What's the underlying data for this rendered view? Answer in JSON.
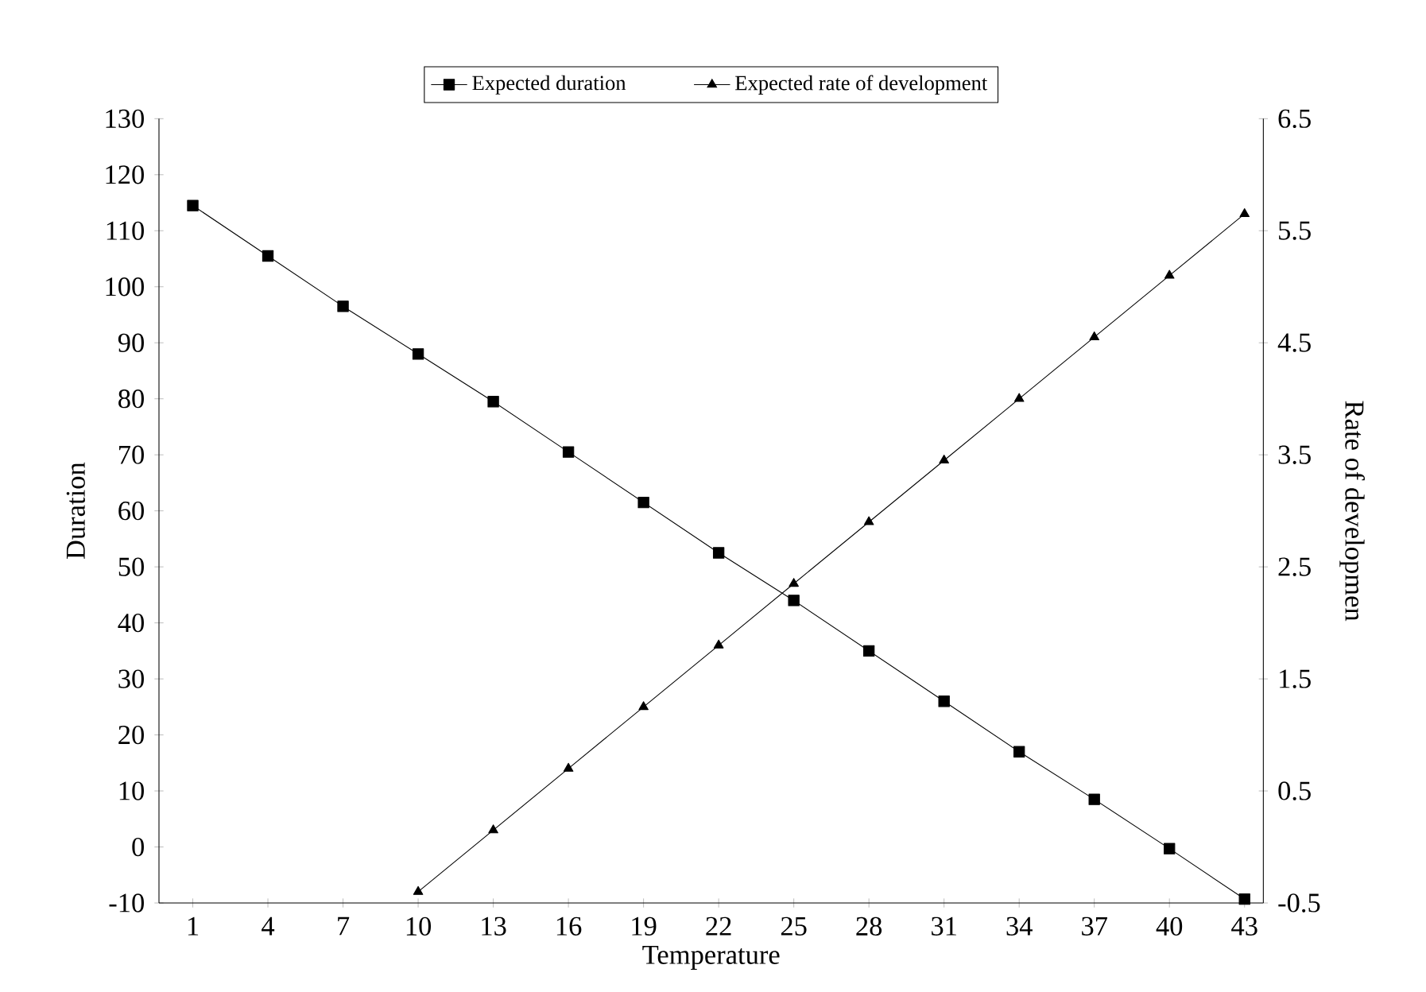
{
  "chart_data": {
    "type": "line",
    "xlabel": "Temperature",
    "ylabel": "Duration",
    "y2label": "Rate of developmen",
    "categories": [
      "1",
      "4",
      "7",
      "10",
      "13",
      "16",
      "19",
      "22",
      "25",
      "28",
      "31",
      "34",
      "37",
      "40",
      "43"
    ],
    "series": [
      {
        "name": "Expected duration",
        "color": "#000000",
        "marker": "square",
        "values": [
          114.5,
          105.5,
          96.5,
          88,
          79.5,
          70.5,
          61.5,
          52.5,
          44,
          35,
          26,
          17,
          8.5,
          -0.3,
          -9.3
        ]
      },
      {
        "name": "Expected rate of development",
        "color": "#000000",
        "marker": "triangle",
        "axis": "y2",
        "values": [
          null,
          null,
          null,
          -0.4,
          0.15,
          0.7,
          1.25,
          1.8,
          2.35,
          2.9,
          3.45,
          4.0,
          4.55,
          5.1,
          5.65
        ]
      }
    ],
    "ylim": [
      -10,
      130
    ],
    "yticks": [
      -10,
      0,
      10,
      20,
      30,
      40,
      50,
      60,
      70,
      80,
      90,
      100,
      110,
      120,
      130
    ],
    "y2lim": [
      -0.5,
      6.5
    ],
    "y2ticks": [
      -0.5,
      0.5,
      1.5,
      2.5,
      3.5,
      4.5,
      5.5,
      6.5
    ],
    "legend": "top",
    "grid": false,
    "line_style": "solid"
  }
}
